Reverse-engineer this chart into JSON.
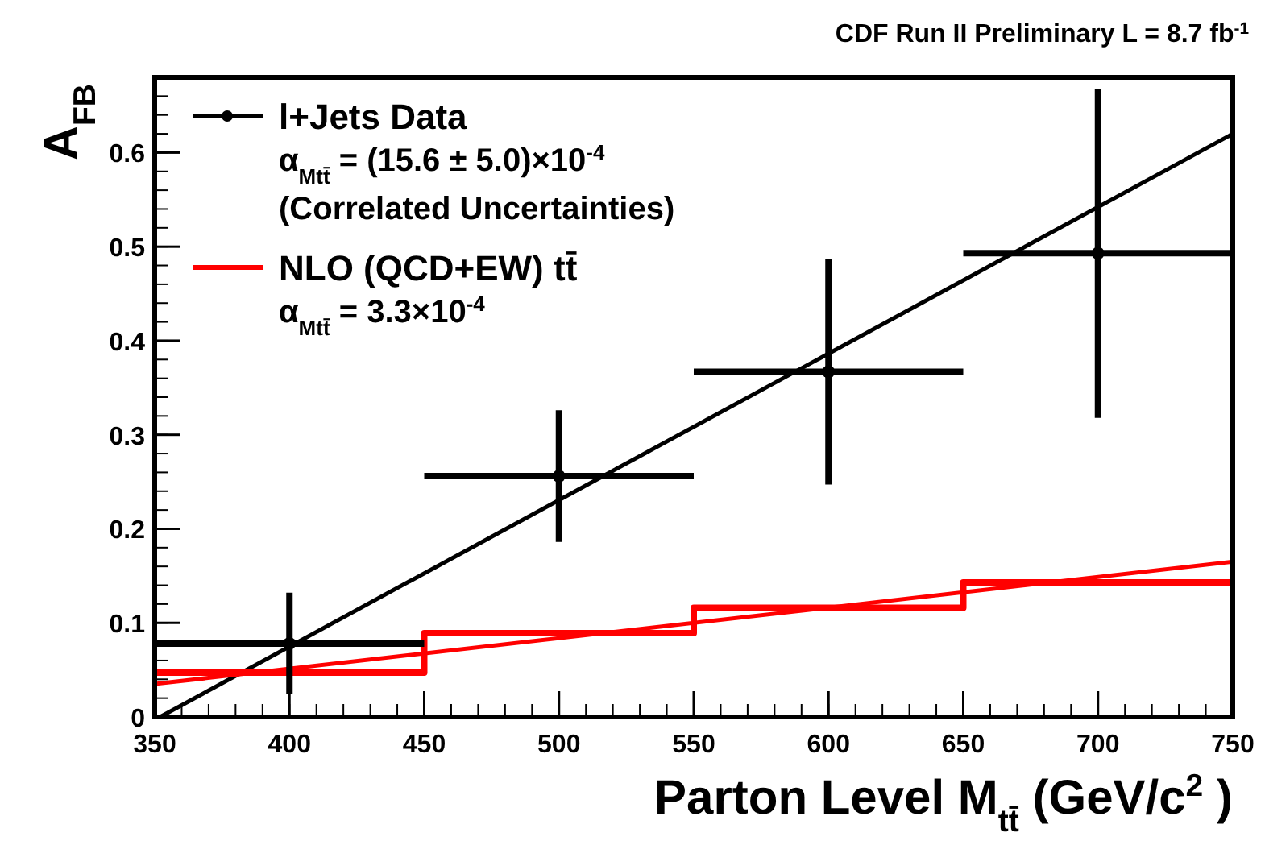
{
  "chart_data": {
    "type": "scatter",
    "title": "CDF Run II Preliminary L = 8.7 fb$^{-1}$",
    "xlabel": "Parton Level M$_{tt̄}$ (GeV/c$^{2}$)",
    "ylabel": "A$_{FB}$",
    "xlim": [
      350,
      750
    ],
    "xticks": [
      350,
      400,
      450,
      500,
      550,
      600,
      650,
      700,
      750
    ],
    "ylim": [
      0,
      0.68
    ],
    "yticks": [
      0,
      {
        "value": 0.1,
        "label": "0.1"
      },
      {
        "value": 0.2,
        "label": "0.2"
      },
      {
        "value": 0.3,
        "label": "0.3"
      },
      {
        "value": 0.4,
        "label": "0.4"
      },
      {
        "value": 0.5,
        "label": "0.5"
      },
      {
        "value": 0.6,
        "label": "0.6"
      }
    ],
    "grid": false,
    "legend": "top left",
    "line_style": "solid",
    "annotations": [
      "α$_{Mtt̄}$ = (15.6 ± 5.0)×10$^{-4}$",
      "(Correlated Uncertainties)",
      "α$_{Mtt̄}$ = 3.3×10$^{-4}$"
    ],
    "series": [
      {
        "name": "l+Jets Data",
        "marker": "circle",
        "color": "#000000",
        "x": [
          400,
          500,
          600,
          700
        ],
        "values": [
          0.078,
          0.256,
          0.367,
          0.493
        ],
        "errors": [
          0.054,
          0.07,
          0.12,
          0.175
        ],
        "xerrors": [
          50,
          50,
          50,
          50
        ]
      },
      {
        "type": "line",
        "color": "#000000",
        "x": [
          352,
          750
        ],
        "values": [
          0,
          0.62
        ]
      },
      {
        "name": "NLO (QCD+EW) tt̄",
        "type": "step",
        "color": "#ff0000",
        "x": [
          350,
          450,
          550,
          650,
          750
        ],
        "values": [
          0.047,
          0.089,
          0.116,
          0.143,
          0.143
        ]
      },
      {
        "type": "line",
        "color": "#ff0000",
        "x": [
          350,
          750
        ],
        "values": [
          0.035,
          0.165
        ]
      }
    ]
  }
}
